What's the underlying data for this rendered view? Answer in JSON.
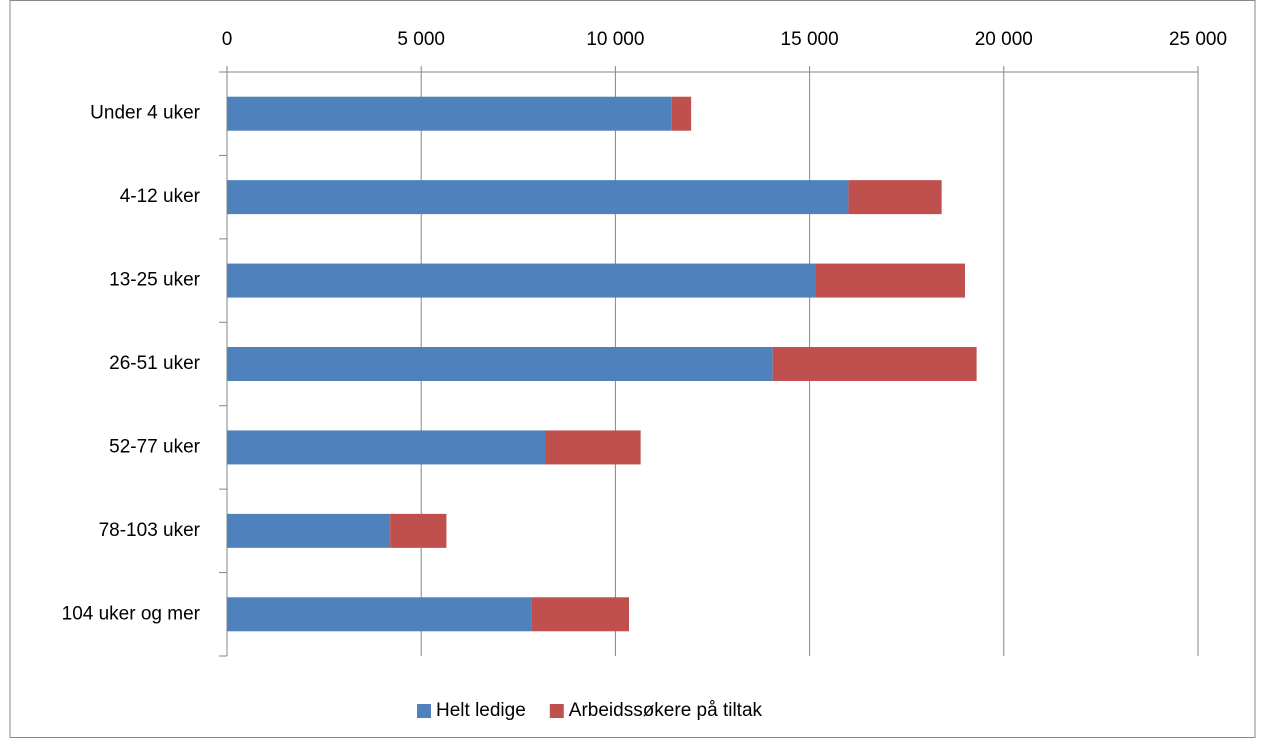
{
  "chart_data": {
    "type": "stacked-bar-horizontal",
    "categories": [
      "Under 4 uker",
      "4-12 uker",
      "13-25 uker",
      "26-51 uker",
      "52-77 uker",
      "78-103 uker",
      "104 uker og mer"
    ],
    "series": [
      {
        "name": "Helt ledige",
        "color": "#4f81bd",
        "values": [
          11450,
          16000,
          15150,
          14050,
          8200,
          4200,
          7850
        ]
      },
      {
        "name": "Arbeidssøkere på tiltak",
        "color": "#c0504d",
        "values": [
          500,
          2400,
          3850,
          5250,
          2450,
          1450,
          2500
        ]
      }
    ],
    "xlim": [
      0,
      25000
    ],
    "xticks": [
      0,
      {
        "value": 5000,
        "label": "5 000"
      },
      {
        "value": 10000,
        "label": "10 000"
      },
      {
        "value": 15000,
        "label": "15 000"
      },
      {
        "value": 20000,
        "label": "20 000"
      },
      {
        "value": 25000,
        "label": "25 000"
      }
    ],
    "grid": true,
    "legend": "bottom"
  }
}
